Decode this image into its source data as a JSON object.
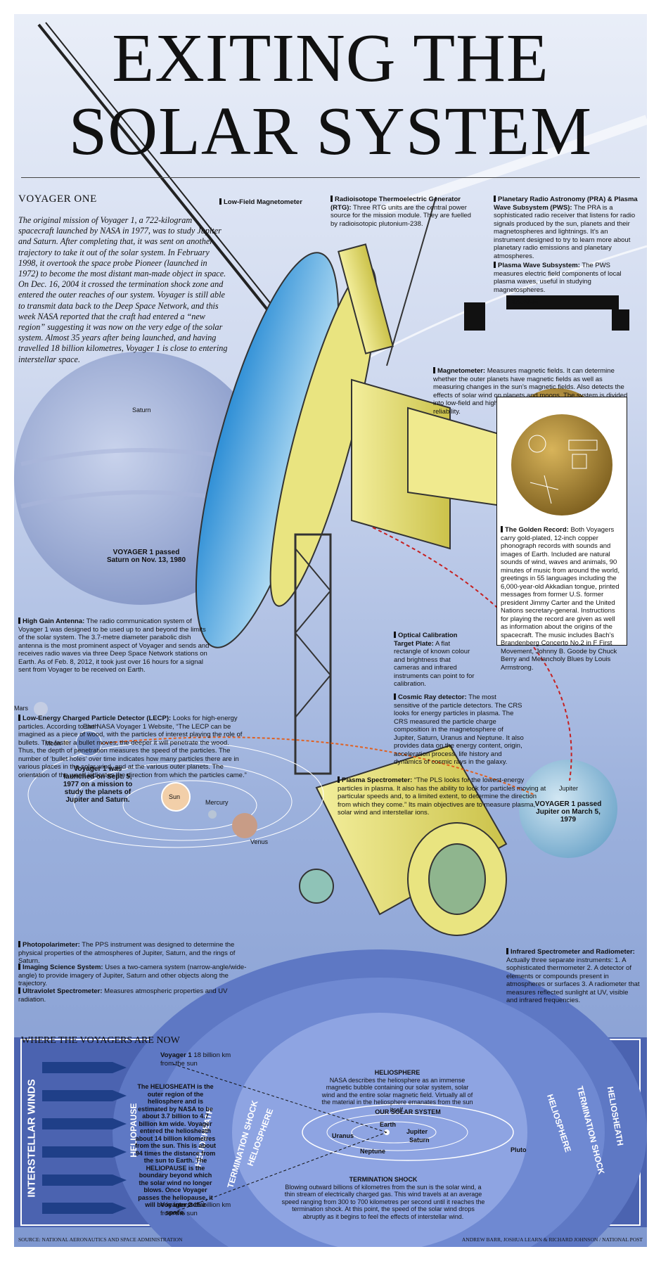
{
  "title": {
    "line1": "EXITING THE",
    "line2": "SOLAR SYSTEM"
  },
  "voyager_heading": "VOYAGER ONE",
  "intro": "The original mission of Voyager 1, a 722-kilogram spacecraft launched by NASA in 1977, was to study Jupiter and Saturn. After completing that, it was sent on another trajectory to take it out of the solar system. In February 1998, it overtook the space probe Pioneer (launched in 1972) to become the most distant man-made object in space. On Dec. 16, 2004 it crossed the termination shock zone and entered the outer reaches of our system. Voyager is still able to transmit data back to the Deep Space Network, and this week NASA reported that the craft had entered a “new region” suggesting it was now on the very edge of the solar system. Almost 35 years after being launched, and having travelled 18 billion kilometres, Voyager 1 is close to entering interstellar space.",
  "labels": {
    "low_field_mag": "Low-Field Magnetometer",
    "rtg_title": "Radioisotope Thermoelectric Generator (RTG):",
    "rtg_text": "Three RTG units are the central power source for the mission module. They are fuelled by radioisotopic plutonium-238.",
    "pra_title": "Planetary Radio Astronomy (PRA) & Plasma Wave Subsystem (PWS):",
    "pra_text": "The PRA is a sophisticated radio receiver that listens for radio signals produced by the sun, planets and their magnetospheres and lightnings. It’s an instrument designed to try to learn more about planetary radio emissions and planetary atmospheres.",
    "pws_title": "Plasma Wave Subsystem:",
    "pws_text": "The PWS measures electric field components of local plasma waves, useful in studying magnetospheres.",
    "scale": "SCALE",
    "magnetometer_title": "Magnetometer:",
    "magnetometer_text": "Measures magnetic fields. It can determine whether the outer planets have magnetic fields as well as measuring changes in the sun’s magnetic fields. Also detects the effects of solar wind on planets and moons. The system is divided into low-field and high-field magnetometers to provide greater reliability.",
    "golden_title": "The Golden Record:",
    "golden_text": "Both Voyagers carry gold-plated, 12-inch copper phonograph records with sounds and images of Earth. Included are natural sounds of wind, waves and animals, 90 minutes of music from around the world, greetings in 55 languages including the 6,000-year-old Akkadian tongue, printed messages from former U.S. former president Jimmy Carter and the United Nations secretary-general. Instructions for playing the record are given as well as information about the origins of the spacecraft. The music includes Bach’s Brandenberg Concerto No.2 in F First Movement, Johnny B. Goode by Chuck Berry and Melancholy Blues by Louis Armstrong.",
    "hga_title": "High Gain Antenna:",
    "hga_text": "The radio communication system of Voyager 1 was designed to be used up to and beyond the limits of the solar system. The 3.7-metre diameter parabolic dish antenna is the most prominent aspect of Voyager and sends and receives radio waves via three Deep Space Network stations on Earth. As of Feb. 8, 2012, it took just over 16 hours for a signal sent from Voyager to be received on Earth.",
    "optical_title": "Optical Calibration Target Plate:",
    "optical_text": "A flat rectangle of known colour and brightness that cameras and infrared instruments can point to for calibration.",
    "lecp_title": "Low-Energy Charged Particle Detector (LECP):",
    "lecp_text": "Looks for high-energy particles. According to the NASA Voyager 1 Website, “The LECP can be imagined as a piece of wood, with the particles of interest playing the role of bullets. The faster a bullet moves, the deeper it will penetrate the wood. Thus, the depth of penetration measures the speed of the particles. The number of ‘bullet holes’ over time indicates how many particles there are in various places in the solar wind, and at the various outer planets. The orientation of the wood indicates the direction from which the particles came.”",
    "cosmic_title": "Cosmic Ray detector:",
    "cosmic_text": "The most sensitive of the particle detectors. The CRS looks for energy particles in plasma. The CRS measured the particle charge composition in the magnetosphere of Jupiter, Saturn, Uranus and Neptune. It also provides data on the energy content, origin, acceleration process, life history and dynamics of cosmic rays in the galaxy.",
    "plasma_title": "Plasma Spectrometer:",
    "plasma_text": "“The PLS looks for the lowest-energy particles in plasma. It also has the  ability to look for particles moving at particular speeds and, to a limited extent, to determine the direction from which they come.” Its main objectives are to measure plasma, solar wind and interstellar ions.",
    "photo_title": "Photopolarimeter:",
    "photo_text": "The PPS instrument was designed to determine the physical properties of the atmospheres of Jupiter, Saturn, and the rings of Saturn.",
    "imaging_title": "Imaging Science System:",
    "imaging_text": "Uses a two-camera system (narrow-angle/wide-angle) to provide imagery of Jupiter, Saturn and other objects along the trajectory.",
    "uv_title": "Ultraviolet Spectrometer:",
    "uv_text": "Measures atmospheric properties and UV radiation.",
    "iris_title": "Infrared Spectrometer and Radiometer:",
    "iris_text": "Actually three separate instruments: 1. A sophisticated thermometer 2. A detector of elements or compounds present in atmospheres or surfaces 3. A radiometer that measures reflected sunlight at UV, visible and infrared frequencies."
  },
  "planets": {
    "saturn": "Saturn",
    "saturn_note": "VOYAGER 1 passed Saturn on Nov. 13, 1980",
    "mars": "Mars",
    "earth": "Earth",
    "moon": "Moon",
    "launch_note": "Voyager 1 was launched on Sept. 5, 1977 on a mission to study the planets of Jupiter and Saturn.",
    "sun": "Sun",
    "mercury": "Mercury",
    "venus": "Venus",
    "jupiter": "Jupiter",
    "jupiter_note": "VOYAGER 1 passed Jupiter on March 5, 1979"
  },
  "where": {
    "heading": "WHERE THE VOYAGERS ARE NOW",
    "interstellar": "INTERSTELLAR WINDS",
    "heliopause": "HELIOPAUSE",
    "heliosheath": "HELIOSHEATH",
    "termination": "TERMINATION SHOCK",
    "heliosphere": "HELIOSPHERE",
    "v1_name": "Voyager 1",
    "v1_dist": "18 billion km from the sun",
    "v2_name": "Voyager 2",
    "v2_dist": "15 billion km from the sun",
    "heliosheath_text": "The HELIOSHEATH is the outer region of the heliosphere and is estimated by NASA to be about 3.7 billion to 4.7 billion km wide. Voyager entered the heliosheath about 14 billion kilometres from the sun. This is about 94 times the distance from the sun to Earth. The HELIOPAUSE is the boundary beyond which the solar wind no longer blows. Once Voyager passes the heliopause, it will be in interstellar space.",
    "heliosphere_title": "HELIOSPHERE",
    "heliosphere_text": "NASA describes the heliosphere as an immense magnetic bubble containing our solar system, solar wind and the entire solar magnetic field. Virtually all of the material in the heliosphere emanates from the sun itself.",
    "our_solar": "OUR SOLAR SYSTEM",
    "earth": "Earth",
    "jupiter": "Jupiter",
    "saturn": "Saturn",
    "uranus": "Uranus",
    "neptune": "Neptune",
    "pluto": "Pluto",
    "ts_title": "TERMINATION SHOCK",
    "ts_text": "Blowing outward billions of kilometres from the sun is the solar wind, a thin stream of electrically charged gas. This wind travels at an average speed ranging from 300 to 700 kilometres per second until it reaches the termination shock. At this point, the speed of the solar wind drops abruptly as it begins to feel the effects of interstellar wind."
  },
  "footer": {
    "source": "SOURCE: NATIONAL AERONAUTICS AND SPACE ADMINISTRATION",
    "credit": "ANDREW BARR, JOSHUA LEARN & RICHARD JOHNSON / NATIONAL POST"
  }
}
